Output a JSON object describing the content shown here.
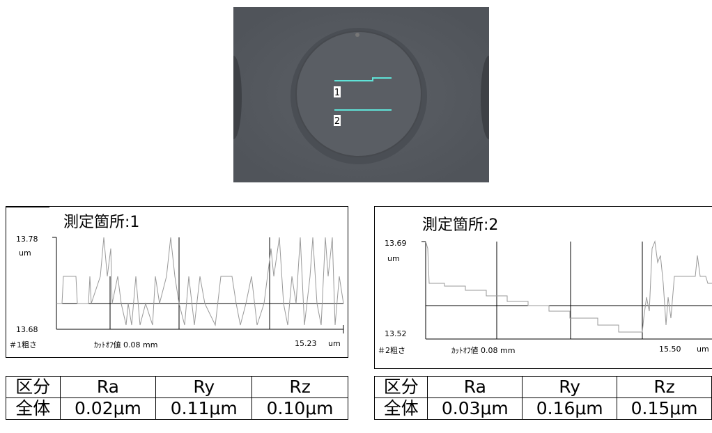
{
  "photo": {
    "labels": [
      "1",
      "2"
    ]
  },
  "panels": [
    {
      "title": "測定箇所:1",
      "y_max": "13.78",
      "y_unit": "um",
      "y_min": "13.68",
      "footer_left": "＃1粗さ",
      "cutoff": "ｶｯﾄｵﾌ値 0.08 mm",
      "length": "15.23",
      "length_unit": "um",
      "table": {
        "header": [
          "区分",
          "Ra",
          "Ry",
          "Rz"
        ],
        "row": [
          "全体",
          "0.02μm",
          "0.11μm",
          "0.10μm"
        ]
      }
    },
    {
      "title": "測定箇所:2",
      "y_max": "13.69",
      "y_unit": "um",
      "y_min": "13.52",
      "footer_left": "＃2粗さ",
      "cutoff": "ｶｯﾄｵﾌ値 0.08 mm",
      "length": "15.50",
      "length_unit": "um",
      "table": {
        "header": [
          "区分",
          "Ra",
          "Ry",
          "Rz"
        ],
        "row": [
          "全体",
          "0.03μm",
          "0.16μm",
          "0.15μm"
        ]
      }
    }
  ]
}
